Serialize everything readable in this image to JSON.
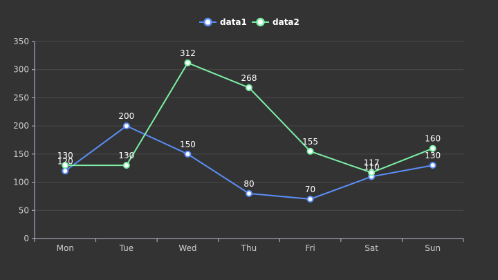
{
  "chart_data": {
    "type": "line",
    "categories": [
      "Mon",
      "Tue",
      "Wed",
      "Thu",
      "Fri",
      "Sat",
      "Sun"
    ],
    "series": [
      {
        "name": "data1",
        "values": [
          120,
          200,
          150,
          80,
          70,
          110,
          130
        ],
        "color": "#5b8ff9"
      },
      {
        "name": "data2",
        "values": [
          130,
          130,
          312,
          268,
          155,
          117,
          160
        ],
        "color": "#7cf0a6"
      }
    ],
    "ylim": [
      0,
      350
    ],
    "yticks": [
      0,
      50,
      100,
      150,
      200,
      250,
      300,
      350
    ],
    "grid": true,
    "legend": "top-center",
    "title": "",
    "xlabel": "",
    "ylabel": ""
  }
}
